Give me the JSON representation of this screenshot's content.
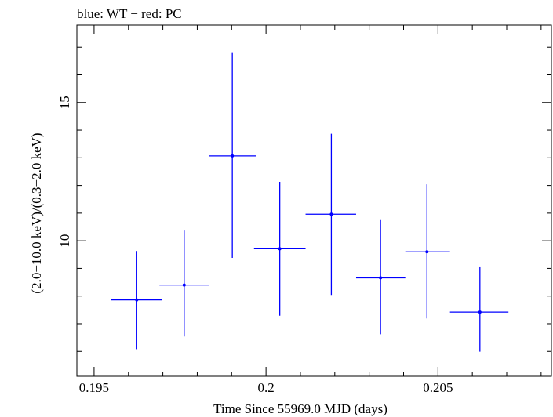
{
  "chart_data": {
    "type": "scatter",
    "title": "blue: WT − red: PC",
    "xlabel": "Time Since 55969.0 MJD (days)",
    "ylabel": "(2.0−10.0 keV)/(0.3−2.0 keV)",
    "xlim": [
      0.1945,
      0.2083
    ],
    "ylim": [
      5.1,
      17.8
    ],
    "xticks": [
      {
        "value": 0.195,
        "label": "0.195"
      },
      {
        "value": 0.2,
        "label": "0.2"
      },
      {
        "value": 0.205,
        "label": "0.205"
      }
    ],
    "yticks": [
      {
        "value": 10,
        "label": "10"
      },
      {
        "value": 15,
        "label": "15"
      }
    ],
    "grid": false,
    "series": [
      {
        "name": "WT",
        "color": "#0000ff",
        "points": [
          {
            "x": 0.19624,
            "xlo": 0.1955,
            "xhi": 0.19697,
            "y": 7.86,
            "ylo": 6.08,
            "yhi": 9.63
          },
          {
            "x": 0.19762,
            "xlo": 0.1969,
            "xhi": 0.19835,
            "y": 8.4,
            "ylo": 6.54,
            "yhi": 10.37
          },
          {
            "x": 0.19902,
            "xlo": 0.19835,
            "xhi": 0.19972,
            "y": 13.07,
            "ylo": 9.38,
            "yhi": 16.82
          },
          {
            "x": 0.2004,
            "xlo": 0.19965,
            "xhi": 0.20115,
            "y": 9.71,
            "ylo": 7.29,
            "yhi": 12.13
          },
          {
            "x": 0.2019,
            "xlo": 0.20115,
            "xhi": 0.20262,
            "y": 10.96,
            "ylo": 8.04,
            "yhi": 13.87
          },
          {
            "x": 0.20333,
            "xlo": 0.20262,
            "xhi": 0.20405,
            "y": 8.66,
            "ylo": 6.62,
            "yhi": 10.75
          },
          {
            "x": 0.20468,
            "xlo": 0.20405,
            "xhi": 0.20535,
            "y": 9.6,
            "ylo": 7.19,
            "yhi": 12.04
          },
          {
            "x": 0.20622,
            "xlo": 0.20535,
            "xhi": 0.20705,
            "y": 7.42,
            "ylo": 5.99,
            "yhi": 9.07
          }
        ]
      }
    ]
  }
}
